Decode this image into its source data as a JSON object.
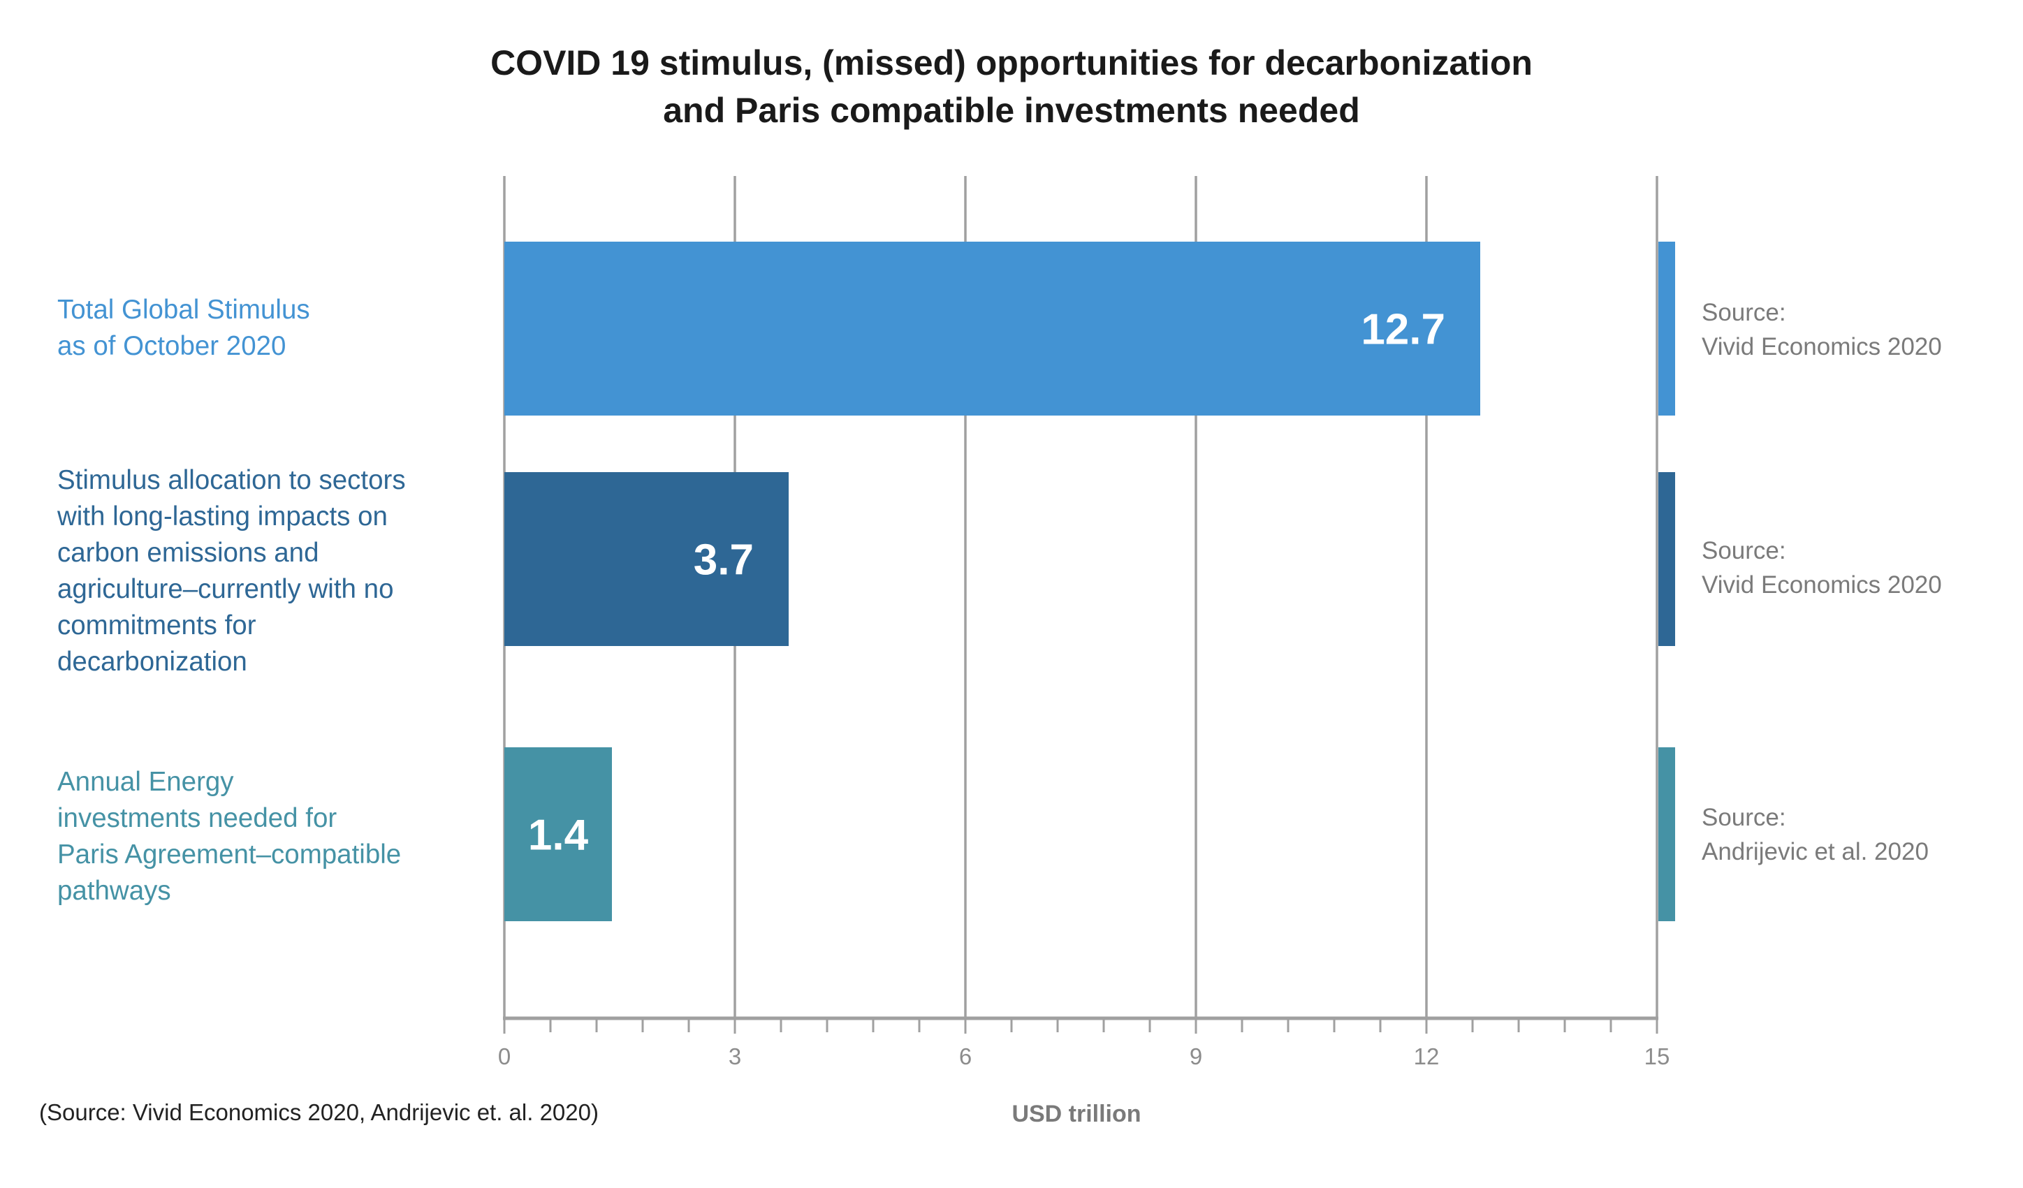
{
  "chart_data": {
    "type": "bar",
    "orientation": "horizontal",
    "title": [
      "COVID 19 stimulus, (missed) opportunities for decarbonization",
      "and Paris compatible investments needed"
    ],
    "categories": [
      [
        "Total Global Stimulus",
        "as of October 2020"
      ],
      [
        "Stimulus allocation to sectors",
        "with long-lasting impacts on",
        "carbon emissions and",
        "agriculture–currently with no",
        "commitments for",
        "decarbonization"
      ],
      [
        "Annual Energy",
        "investments needed for",
        "Paris Agreement–compatible",
        "pathways"
      ]
    ],
    "values": [
      12.7,
      3.7,
      1.4
    ],
    "value_labels": [
      "12.7",
      "3.7",
      "1.4"
    ],
    "colors": [
      "#4393d3",
      "#2e6795",
      "#4592a5"
    ],
    "sources": [
      [
        "Source:",
        "Vivid Economics 2020"
      ],
      [
        "Source:",
        "Vivid Economics 2020"
      ],
      [
        "Source:",
        "Andrijevic et al. 2020"
      ]
    ],
    "xlabel": "USD trillion",
    "xlim": [
      0,
      15
    ],
    "xticks": [
      0,
      3,
      6,
      9,
      12,
      15
    ],
    "minor_tick_step": 0.6,
    "grid": true,
    "footnote": "(Source: Vivid Economics 2020, Andrijevic et. al. 2020)"
  }
}
